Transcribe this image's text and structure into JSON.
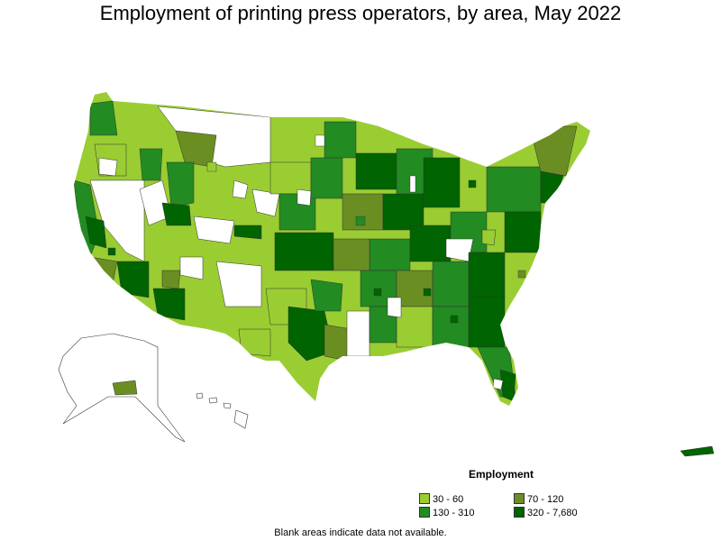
{
  "title": "Employment of printing press operators, by area, May 2022",
  "legend": {
    "title": "Employment",
    "items": [
      {
        "label": "30 - 60",
        "color": "#9acd32"
      },
      {
        "label": "70 - 120",
        "color": "#6b8e23"
      },
      {
        "label": "130 - 310",
        "color": "#228b22"
      },
      {
        "label": "320 - 7,680",
        "color": "#006400"
      }
    ]
  },
  "note": "Blank areas indicate data not available.",
  "colors": {
    "no_data": "#ffffff",
    "border": "#333333"
  }
}
